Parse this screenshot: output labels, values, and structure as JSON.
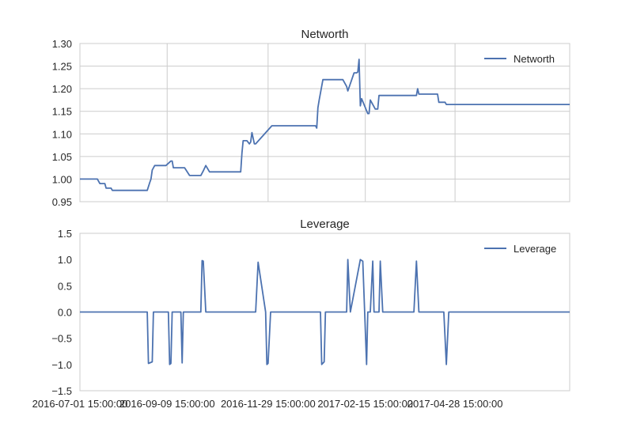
{
  "chart_data": [
    {
      "type": "line",
      "title": "Networth",
      "xlabel": "",
      "ylabel": "",
      "grid": true,
      "legend_placement": "top-right",
      "ylim": [
        0.95,
        1.3
      ],
      "yticks": [
        "0.95",
        "1.00",
        "1.05",
        "1.10",
        "1.15",
        "1.20",
        "1.25",
        "1.30"
      ],
      "xlim": [
        "2016-07-01",
        "2017-07-29"
      ],
      "xticks": [
        "2016-07-01 15:00:00",
        "2016-09-09 15:00:00",
        "2016-11-29 15:00:00",
        "2017-02-15 15:00:00",
        "2017-04-28 15:00:00"
      ],
      "series": [
        {
          "name": "Networth",
          "color": "#4c72b0",
          "x": [
            "2016-07-01",
            "2016-07-08",
            "2016-07-15",
            "2016-07-17",
            "2016-07-19",
            "2016-07-21",
            "2016-07-22",
            "2016-07-26",
            "2016-07-27",
            "2016-08-24",
            "2016-08-26",
            "2016-08-27",
            "2016-08-28",
            "2016-08-30",
            "2016-09-01",
            "2016-09-08",
            "2016-09-12",
            "2016-09-13",
            "2016-09-14",
            "2016-09-22",
            "2016-09-23",
            "2016-09-27",
            "2016-10-06",
            "2016-10-08",
            "2016-10-10",
            "2016-10-13",
            "2016-11-07",
            "2016-11-08",
            "2016-11-09",
            "2016-11-12",
            "2016-11-14",
            "2016-11-15",
            "2016-11-16",
            "2016-11-18",
            "2016-11-19",
            "2016-12-02",
            "2016-12-07",
            "2017-01-06",
            "2017-01-07",
            "2017-01-08",
            "2017-01-09",
            "2017-01-12",
            "2017-01-28",
            "2017-01-31",
            "2017-02-01",
            "2017-02-06",
            "2017-02-08",
            "2017-02-09",
            "2017-02-10",
            "2017-02-11",
            "2017-02-12",
            "2017-02-17",
            "2017-02-18",
            "2017-02-19",
            "2017-02-23",
            "2017-02-25",
            "2017-02-26",
            "2017-03-28",
            "2017-03-29",
            "2017-03-30",
            "2017-04-14",
            "2017-04-15",
            "2017-04-20",
            "2017-04-21",
            "2017-07-29"
          ],
          "y": [
            1.0,
            1.0,
            1.0,
            0.99,
            0.99,
            0.99,
            0.98,
            0.98,
            0.975,
            0.975,
            0.992,
            1.0,
            1.02,
            1.03,
            1.03,
            1.03,
            1.04,
            1.04,
            1.025,
            1.025,
            1.025,
            1.008,
            1.008,
            1.018,
            1.03,
            1.016,
            1.016,
            1.058,
            1.085,
            1.085,
            1.078,
            1.082,
            1.103,
            1.078,
            1.078,
            1.118,
            1.118,
            1.118,
            1.113,
            1.158,
            1.175,
            1.22,
            1.22,
            1.205,
            1.195,
            1.235,
            1.235,
            1.237,
            1.265,
            1.162,
            1.178,
            1.145,
            1.145,
            1.175,
            1.155,
            1.155,
            1.185,
            1.185,
            1.2,
            1.188,
            1.188,
            1.17,
            1.17,
            1.165,
            1.165
          ]
        }
      ]
    },
    {
      "type": "line",
      "title": "Leverage",
      "xlabel": "",
      "ylabel": "",
      "grid": false,
      "legend_placement": "top-right",
      "ylim": [
        -1.5,
        1.5
      ],
      "yticks": [
        "−1.5",
        "−1.0",
        "−0.5",
        "0.0",
        "0.5",
        "1.0",
        "1.5"
      ],
      "xlim": [
        "2016-07-01",
        "2017-07-29"
      ],
      "xticks": [
        "2016-07-01 15:00:00",
        "2016-09-09 15:00:00",
        "2016-11-29 15:00:00",
        "2017-02-15 15:00:00",
        "2017-04-28 15:00:00"
      ],
      "series": [
        {
          "name": "Leverage",
          "color": "#4c72b0",
          "x": [
            "2016-07-01",
            "2016-08-24",
            "2016-08-25",
            "2016-08-28",
            "2016-08-29",
            "2016-09-10",
            "2016-09-11",
            "2016-09-12",
            "2016-09-13",
            "2016-09-20",
            "2016-09-21",
            "2016-09-22",
            "2016-09-23",
            "2016-10-06",
            "2016-10-07",
            "2016-10-08",
            "2016-10-10",
            "2016-11-19",
            "2016-11-21",
            "2016-11-27",
            "2016-11-28",
            "2016-11-29",
            "2016-12-01",
            "2017-01-10",
            "2017-01-11",
            "2017-01-13",
            "2017-01-14",
            "2017-01-31",
            "2017-02-01",
            "2017-02-03",
            "2017-02-11",
            "2017-02-13",
            "2017-02-16",
            "2017-02-17",
            "2017-02-19",
            "2017-02-21",
            "2017-02-22",
            "2017-02-23",
            "2017-02-26",
            "2017-02-27",
            "2017-03-01",
            "2017-03-02",
            "2017-03-04",
            "2017-03-26",
            "2017-03-28",
            "2017-03-30",
            "2017-04-19",
            "2017-04-21",
            "2017-04-23",
            "2017-07-29"
          ],
          "y": [
            0,
            0,
            -0.98,
            -0.95,
            0,
            0,
            -1.0,
            -0.98,
            0,
            0,
            -0.97,
            0,
            0,
            0,
            0.98,
            0.97,
            0,
            0,
            0.95,
            0,
            -1.0,
            -0.98,
            0,
            0,
            -1.0,
            -0.95,
            0,
            0,
            1.0,
            0,
            1.0,
            0.97,
            -1.0,
            0,
            0,
            0.97,
            0,
            0,
            0,
            0.97,
            0,
            0,
            0,
            0,
            0.97,
            0,
            0,
            -1.0,
            0,
            0
          ]
        }
      ]
    }
  ]
}
